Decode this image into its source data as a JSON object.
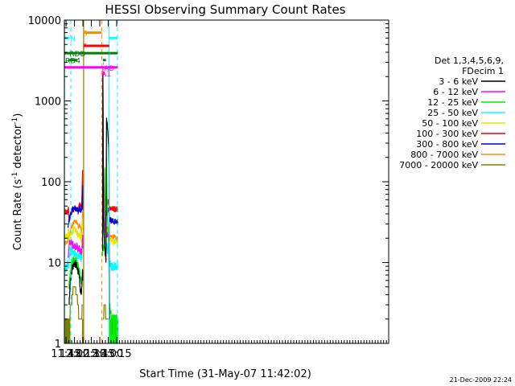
{
  "chart_data": {
    "type": "line",
    "title": "HESSI Observing Summary Count Rates",
    "xlabel": "Start Time (31-May-07 11:42:02)",
    "ylabel_main": "Count Rate (s",
    "ylabel_sup1": "-1",
    "ylabel_mid": " detector",
    "ylabel_sup2": "-1",
    "ylabel_end": ")",
    "x_range_min": [
      702,
      1279
    ],
    "y_range": [
      1,
      10000
    ],
    "y_scale": "log",
    "grid": false,
    "x_ticks": [
      {
        "t": 705,
        "label": "11:45"
      },
      {
        "t": 720,
        "label": "12:00"
      },
      {
        "t": 735,
        "label": "12:15"
      },
      {
        "t": 750,
        "label": "12:30"
      },
      {
        "t": 765,
        "label": "12:45"
      },
      {
        "t": 780,
        "label": "13:00"
      },
      {
        "t": 795,
        "label": "13:15"
      }
    ],
    "y_ticks": [
      {
        "v": 1,
        "label": "1"
      },
      {
        "v": 10,
        "label": "10"
      },
      {
        "v": 100,
        "label": "100"
      },
      {
        "v": 1000,
        "label": "1000"
      },
      {
        "v": 10000,
        "label": "10000"
      }
    ],
    "legend": {
      "position": "right",
      "header": [
        "Det 1,3,4,5,6,9,",
        "FDecim 1"
      ],
      "entries": [
        {
          "label": "3 - 6 keV",
          "color": "#000000"
        },
        {
          "label": "6 - 12 keV",
          "color": "#ff00ff"
        },
        {
          "label": "12 - 25 keV",
          "color": "#00ee00"
        },
        {
          "label": "25 - 50 keV",
          "color": "#00ffff"
        },
        {
          "label": "50 - 100 keV",
          "color": "#e6e600"
        },
        {
          "label": "100 - 300 keV",
          "color": "#ee0000"
        },
        {
          "label": "300 - 800 keV",
          "color": "#0000dd"
        },
        {
          "label": "800 - 7000 keV",
          "color": "#ff8c00"
        },
        {
          "label": "7000 - 20000 keV",
          "color": "#808000"
        }
      ]
    },
    "series": [
      {
        "color": "#ff0000",
        "noise": 0.04,
        "points": [
          [
            702,
            42
          ],
          [
            708,
            42
          ],
          [
            709.5,
            48
          ],
          [
            710,
            33
          ],
          [
            714,
            42
          ],
          [
            720,
            47
          ],
          [
            724,
            47
          ],
          [
            727,
            42
          ],
          [
            728,
            52
          ],
          [
            731,
            50
          ],
          [
            733,
            50
          ],
          [
            733.5,
            75
          ],
          [
            734.5,
            140
          ],
          [
            735,
            50
          ]
        ]
      },
      {
        "color": "#0000dd",
        "noise": 0.04,
        "points": [
          [
            708.5,
            27
          ],
          [
            709.5,
            30
          ],
          [
            712,
            38
          ],
          [
            716,
            45
          ],
          [
            720,
            47
          ],
          [
            724,
            47
          ],
          [
            727,
            42
          ],
          [
            728,
            48
          ],
          [
            731,
            45
          ],
          [
            733,
            45
          ],
          [
            733.5,
            60
          ],
          [
            734.5,
            90
          ],
          [
            735,
            45
          ]
        ]
      },
      {
        "color": "#ff8c00",
        "noise": 0.03,
        "points": [
          [
            702,
            17
          ],
          [
            708,
            18
          ],
          [
            709.5,
            25
          ],
          [
            710,
            18
          ],
          [
            712,
            24
          ],
          [
            716,
            29
          ],
          [
            720,
            32
          ],
          [
            724,
            32
          ],
          [
            727,
            27
          ],
          [
            728,
            29
          ],
          [
            731,
            27
          ],
          [
            733,
            22
          ],
          [
            734.5,
            45
          ],
          [
            735,
            30
          ]
        ]
      },
      {
        "color": "#e6e600",
        "noise": 0.04,
        "points": [
          [
            702,
            21
          ],
          [
            708,
            22
          ],
          [
            709.5,
            25
          ],
          [
            710,
            18
          ],
          [
            712,
            21
          ],
          [
            716,
            24
          ],
          [
            720,
            26
          ],
          [
            724,
            24
          ],
          [
            727,
            21
          ],
          [
            728,
            22
          ],
          [
            731,
            21
          ],
          [
            733,
            18
          ],
          [
            734.5,
            35
          ],
          [
            735,
            25
          ]
        ]
      },
      {
        "color": "#00ffff",
        "noise": 0.06,
        "points": [
          [
            702,
            8
          ],
          [
            706,
            9
          ],
          [
            708,
            10
          ],
          [
            709.5,
            9
          ],
          [
            711,
            13
          ],
          [
            713,
            14
          ],
          [
            716,
            14
          ],
          [
            720,
            13
          ],
          [
            724,
            12
          ],
          [
            727,
            11
          ],
          [
            728,
            13
          ],
          [
            731,
            12
          ],
          [
            733,
            11
          ],
          [
            734.5,
            20
          ],
          [
            735,
            15
          ]
        ]
      },
      {
        "color": "#ff00ff",
        "noise": 0.05,
        "points": [
          [
            708.5,
            12
          ],
          [
            709.5,
            13
          ],
          [
            711,
            17
          ],
          [
            713,
            18
          ],
          [
            716,
            17
          ],
          [
            720,
            16
          ],
          [
            724,
            16
          ],
          [
            727,
            14
          ],
          [
            728,
            15
          ],
          [
            731,
            14
          ],
          [
            733,
            13
          ],
          [
            734.5,
            22
          ],
          [
            735,
            15
          ]
        ]
      },
      {
        "color": "#00ee00",
        "noise": 0.06,
        "points": [
          [
            710,
            5
          ],
          [
            711,
            6
          ],
          [
            713,
            8
          ],
          [
            716,
            10
          ],
          [
            720,
            11
          ],
          [
            724,
            10
          ],
          [
            728,
            8
          ],
          [
            731,
            6
          ],
          [
            733,
            5.5
          ],
          [
            734.5,
            8
          ],
          [
            735,
            6
          ]
        ]
      },
      {
        "color": "#000000",
        "noise": 0.05,
        "points": [
          [
            710.5,
            3
          ],
          [
            712,
            5
          ],
          [
            714,
            7
          ],
          [
            717,
            9
          ],
          [
            720,
            10
          ],
          [
            724,
            9
          ],
          [
            728,
            7
          ],
          [
            730,
            5
          ],
          [
            732,
            4
          ],
          [
            733,
            5
          ],
          [
            734.5,
            8
          ],
          [
            735,
            6
          ]
        ]
      },
      {
        "color": "#808000",
        "noise": 0.0,
        "points": [
          [
            702,
            2
          ],
          [
            712,
            2
          ],
          [
            712.5,
            3
          ],
          [
            715,
            3
          ],
          [
            715.5,
            4
          ],
          [
            717,
            4
          ],
          [
            717.5,
            5
          ],
          [
            722,
            5
          ],
          [
            722.5,
            4
          ],
          [
            725,
            4
          ],
          [
            725.5,
            3
          ],
          [
            727,
            3
          ],
          [
            727.5,
            2
          ],
          [
            733,
            2
          ],
          [
            733.5,
            3
          ],
          [
            735,
            3
          ]
        ]
      },
      {
        "color": "#ff0000",
        "noise": 0.04,
        "points": [
          [
            770,
            50
          ],
          [
            771,
            65
          ],
          [
            773,
            62
          ],
          [
            775,
            60
          ],
          [
            776,
            58
          ],
          [
            777,
            55
          ],
          [
            778,
            56
          ],
          [
            780,
            58
          ],
          [
            782,
            48
          ],
          [
            786,
            47
          ],
          [
            790,
            46
          ],
          [
            794,
            46
          ],
          [
            797,
            46
          ]
        ]
      },
      {
        "color": "#0000dd",
        "noise": 0.04,
        "points": [
          [
            770,
            42
          ],
          [
            771,
            55
          ],
          [
            772,
            48
          ],
          [
            774,
            45
          ],
          [
            776,
            42
          ],
          [
            778,
            44
          ],
          [
            780,
            48
          ],
          [
            782,
            35
          ],
          [
            786,
            33
          ],
          [
            790,
            32
          ],
          [
            794,
            32
          ],
          [
            797,
            32
          ]
        ]
      },
      {
        "color": "#ff8c00",
        "noise": 0.03,
        "points": [
          [
            770,
            30
          ],
          [
            771,
            35
          ],
          [
            773,
            30
          ],
          [
            775,
            25
          ],
          [
            777,
            25
          ],
          [
            779,
            28
          ],
          [
            781,
            25
          ],
          [
            782,
            22
          ],
          [
            786,
            21
          ],
          [
            790,
            21
          ],
          [
            794,
            20
          ],
          [
            797,
            20
          ]
        ]
      },
      {
        "color": "#e6e600",
        "noise": 0.04,
        "points": [
          [
            770,
            28
          ],
          [
            771,
            32
          ],
          [
            773,
            28
          ],
          [
            775,
            24
          ],
          [
            777,
            24
          ],
          [
            779,
            24
          ],
          [
            781,
            22
          ],
          [
            782,
            20
          ],
          [
            786,
            19
          ],
          [
            790,
            18
          ],
          [
            794,
            18
          ],
          [
            797,
            18
          ]
        ]
      },
      {
        "color": "#00ffff",
        "noise": 0.06,
        "points": [
          [
            770,
            30
          ],
          [
            771,
            25
          ],
          [
            773,
            20
          ],
          [
            775,
            17
          ],
          [
            777,
            16
          ],
          [
            780,
            14
          ],
          [
            782,
            10
          ],
          [
            786,
            9
          ],
          [
            790,
            9
          ],
          [
            794,
            9
          ],
          [
            797,
            9
          ]
        ]
      },
      {
        "color": "#00ee00",
        "noise": 0.06,
        "points": [
          [
            770,
            12
          ],
          [
            771,
            15
          ],
          [
            773,
            14
          ],
          [
            774,
            150
          ],
          [
            775,
            22
          ],
          [
            776,
            18
          ],
          [
            777,
            200
          ],
          [
            778,
            60
          ],
          [
            779,
            30
          ],
          [
            781,
            15
          ],
          [
            782,
            3
          ],
          [
            786,
            2
          ],
          [
            797,
            2
          ]
        ]
      },
      {
        "color": "#ff00ff",
        "noise": 0.04,
        "points": [
          [
            770,
            15
          ],
          [
            770.5,
            2500
          ],
          [
            771,
            250
          ],
          [
            772,
            80
          ],
          [
            773,
            45
          ],
          [
            775,
            25
          ],
          [
            777,
            22
          ],
          [
            779,
            22
          ],
          [
            781,
            22
          ],
          [
            782,
            1.5
          ],
          [
            797,
            1.5
          ]
        ]
      },
      {
        "color": "#000000",
        "noise": 0.03,
        "points": [
          [
            770,
            14
          ],
          [
            770.5,
            2200
          ],
          [
            771,
            600
          ],
          [
            771.5,
            40
          ],
          [
            773,
            20
          ],
          [
            775,
            12
          ],
          [
            776,
            10
          ],
          [
            777,
            620
          ],
          [
            778,
            550
          ],
          [
            779,
            450
          ],
          [
            780,
            350
          ],
          [
            781,
            250
          ],
          [
            781.5,
            150
          ],
          [
            782,
            3
          ],
          [
            783,
            1.5
          ],
          [
            797,
            1.5
          ]
        ]
      },
      {
        "color": "#808000",
        "noise": 0.0,
        "points": [
          [
            770,
            2
          ],
          [
            772,
            2
          ],
          [
            772.5,
            3
          ],
          [
            775,
            3
          ],
          [
            775.5,
            2
          ],
          [
            782,
            2
          ],
          [
            782.5,
            1.5
          ],
          [
            797,
            1.5
          ]
        ]
      }
    ],
    "olive_noise": [
      [
        702,
        712
      ],
      [
        734,
        736
      ],
      [
        782,
        797
      ]
    ],
    "green_noise": [
      [
        782,
        797
      ]
    ],
    "vertical_lines": [
      {
        "t": 702.3,
        "color": "#00ffff",
        "dash": "solid"
      },
      {
        "t": 713.5,
        "color": "#00ffff",
        "dash": "dashed"
      },
      {
        "t": 736.0,
        "color": "#ff8c00",
        "dash": "solid"
      },
      {
        "t": 736.4,
        "color": "#808000",
        "dash": "solid"
      },
      {
        "t": 768.7,
        "color": "#ff8c00",
        "dash": "dashed"
      },
      {
        "t": 781.6,
        "color": "#00ffff",
        "dash": "solid"
      },
      {
        "t": 796.5,
        "color": "#00ffff",
        "dash": "dashed"
      }
    ],
    "bars": [
      {
        "label": "N",
        "color": "#00ffff",
        "y": 6000,
        "segments": [
          [
            702,
            711
          ]
        ],
        "label_t": 712.5,
        "extra": [
          [
            782,
            797
          ]
        ]
      },
      {
        "label": "S",
        "color": "#ff8c00",
        "y": 7000,
        "segments": [
          [
            736.5,
            768.5
          ]
        ],
        "label_t": 734.5
      },
      {
        "label": "F",
        "color": "#ff0000",
        "y": 4800,
        "segments": [
          [
            736.5,
            782
          ]
        ],
        "label_t": 734.5
      },
      {
        "label": "RDD",
        "color": "#008000",
        "y": 3900,
        "segments": [
          [
            702,
            725
          ],
          [
            725.5,
            782
          ],
          [
            782.5,
            797
          ]
        ],
        "label_t": 711
      },
      {
        "label": "RD4",
        "color": "#008000",
        "y": 3200,
        "segments": [
          [
            709.5,
            725
          ],
          [
            770.5,
            776
          ]
        ],
        "label_t": 703.5
      },
      {
        "label": "AD",
        "color": "#ff00ff",
        "y": 2600,
        "segments": [
          [
            702,
            797
          ]
        ],
        "label_t": 772.5
      },
      {
        "label": "A1",
        "color": "#ff00ff",
        "y": 2200,
        "segments": [
          [
            771,
            773.5
          ]
        ],
        "label_t": 768
      },
      {
        "label": "",
        "color": "#ff00ff",
        "y": 2900,
        "segments": [
          [
            771,
            772
          ]
        ],
        "label_t": 0
      }
    ],
    "timestamp": "21-Dec-2009 22:24"
  }
}
